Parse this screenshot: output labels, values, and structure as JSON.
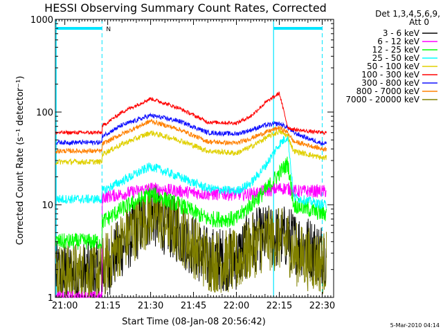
{
  "chart_data": {
    "type": "line",
    "title": "HESSI Observing Summary Count Rates, Corrected",
    "xlabel": "Start Time (08-Jan-08 20:56:42)",
    "ylabel": "Corrected Count Rate (s⁻¹ detector⁻¹)",
    "y_scale": "log",
    "ylim": [
      1,
      1000
    ],
    "xlim": [
      "20:56:42",
      "22:34:00"
    ],
    "x_ticks": [
      "21:00",
      "21:15",
      "21:30",
      "21:45",
      "22:00",
      "22:15",
      "22:30"
    ],
    "y_ticks": [
      "1",
      "10",
      "100",
      "1000"
    ],
    "legend_header": [
      "Det 1,3,4,5,6,9,",
      "Att 0"
    ],
    "legend_position": "right",
    "footer": "5-Mar-2010 04:14",
    "annotations": [
      {
        "type": "night",
        "label": "N",
        "from": "20:56:42",
        "to": "21:13:00",
        "level": 800
      },
      {
        "type": "night",
        "to_end": true,
        "from": "22:13:00",
        "to": "22:30:00",
        "level": 800
      }
    ],
    "vertical_markers": [
      "21:13:00",
      "22:13:00",
      "22:30:00"
    ],
    "x": [
      "21:13",
      "21:20",
      "21:30",
      "21:40",
      "21:50",
      "22:00",
      "22:05",
      "22:10",
      "22:15",
      "22:18",
      "22:20",
      "22:25",
      "22:30"
    ],
    "series": [
      {
        "name": "3 - 6 keV",
        "color": "#000000",
        "values": [
          1.8,
          3.6,
          8.0,
          5.0,
          2.6,
          2.6,
          4.0,
          4.5,
          4.5,
          4.5,
          4.0,
          3.5,
          3.0
        ]
      },
      {
        "name": "6 - 12 keV",
        "color": "#ff00ff",
        "values": [
          12,
          13,
          15,
          14,
          13,
          13,
          13,
          14,
          15,
          15,
          14,
          14,
          14
        ]
      },
      {
        "name": "12 - 25 keV",
        "color": "#00ff00",
        "values": [
          6.5,
          9,
          13,
          10,
          7,
          7,
          10,
          14,
          22,
          28,
          10,
          9,
          8
        ]
      },
      {
        "name": "25 - 50 keV",
        "color": "#00ffff",
        "values": [
          14,
          18,
          26,
          20,
          15,
          14,
          17,
          26,
          45,
          55,
          12,
          11,
          10
        ]
      },
      {
        "name": "50 - 100 keV",
        "color": "#e0d000",
        "values": [
          35,
          45,
          60,
          50,
          38,
          36,
          42,
          52,
          62,
          55,
          38,
          35,
          32
        ]
      },
      {
        "name": "100 - 300 keV",
        "color": "#ff0000",
        "values": [
          70,
          100,
          140,
          110,
          78,
          76,
          90,
          125,
          160,
          68,
          65,
          62,
          60
        ]
      },
      {
        "name": "300 - 800 keV",
        "color": "#1010ff",
        "values": [
          55,
          72,
          92,
          80,
          60,
          58,
          64,
          72,
          75,
          68,
          60,
          52,
          46
        ]
      },
      {
        "name": "800 - 7000 keV",
        "color": "#ff8000",
        "values": [
          45,
          58,
          80,
          65,
          48,
          46,
          52,
          60,
          68,
          60,
          48,
          44,
          40
        ]
      },
      {
        "name": "7000 - 20000 keV",
        "color": "#808000",
        "values": [
          2.0,
          4.0,
          8.2,
          5.2,
          2.5,
          2.4,
          3.4,
          4.2,
          4.2,
          4.0,
          3.0,
          2.6,
          2.4
        ]
      }
    ],
    "pre_night": [
      {
        "series": "6 - 12 keV",
        "value": 1.0
      },
      {
        "series": "12 - 25 keV",
        "value": 4.0
      },
      {
        "series": "25 - 50 keV",
        "value": 11.5
      },
      {
        "series": "50 - 100 keV",
        "value": 29
      },
      {
        "series": "100 - 300 keV",
        "value": 60
      },
      {
        "series": "300 - 800 keV",
        "value": 47
      },
      {
        "series": "800 - 7000 keV",
        "value": 38
      },
      {
        "series": "7000 - 20000 keV",
        "value": 1.8
      }
    ]
  }
}
